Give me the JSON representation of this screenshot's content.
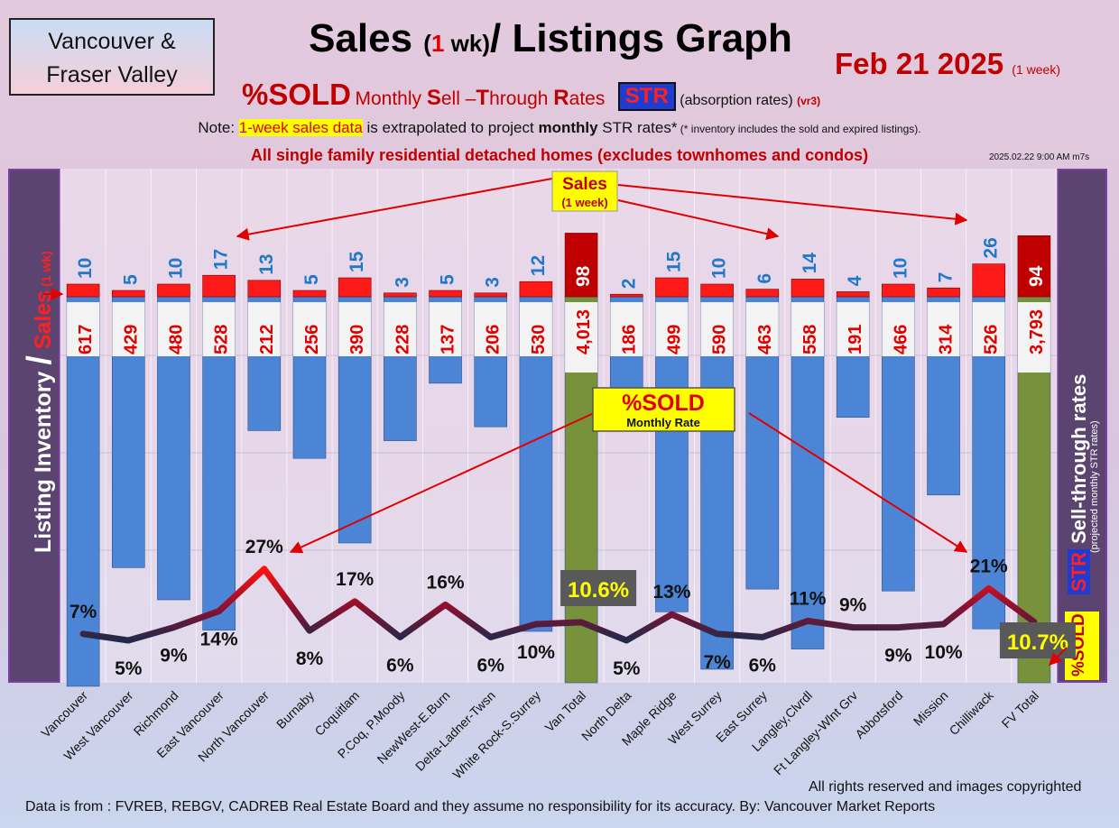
{
  "header": {
    "region_line1": "Vancouver &",
    "region_line2": "Fraser Valley",
    "title_a": "Sales ",
    "title_b": "(",
    "title_c": "1",
    "title_d": " wk)",
    "title_e": "/ Listings Graph",
    "date": "Feb 21  2025",
    "date_note": "(1 week)",
    "sold_label": "%SOLD",
    "subtitle_m": "Monthly ",
    "subtitle_s": "S",
    "subtitle_ell": "ell –",
    "subtitle_t": "T",
    "subtitle_hrough": "hrough ",
    "subtitle_r": "R",
    "subtitle_ates": "ates",
    "str_badge": "STR",
    "absorption": "(absorption rates)",
    "version": "(vr3)",
    "note_prefix": "Note: ",
    "note_highlight": "1-week sales data",
    "note_mid": " is extrapolated to project ",
    "note_bold": "monthly",
    "note_end": " STR rates*",
    "note_small": " (* inventory includes the sold and expired listings).",
    "scope": "All single family residential detached homes (excludes townhomes and condos)",
    "timestamp": "2025.02.22 9:00 AM m7s"
  },
  "chart_data": {
    "type": "bar",
    "categories": [
      "Vancouver",
      "West Vancouver",
      "Richmond",
      "East Vancouver",
      "North Vancouver",
      "Burnaby",
      "Coquitlam",
      "P.Coq, P.Moody",
      "NewWest-E.Burn",
      "Delta-Ladner-Twsn",
      "White Rock-S.Surrey",
      "Van Total",
      "North Delta",
      "Maple Ridge",
      "West Surrey",
      "East Surrey",
      "Langley,Clvrdl",
      "Ft Langley-Wlnt Grv",
      "Abbotsford",
      "Mission",
      "Chilliwack",
      "FV Total"
    ],
    "sales_1wk": [
      10,
      5,
      10,
      17,
      13,
      5,
      15,
      3,
      5,
      3,
      12,
      98,
      2,
      15,
      10,
      6,
      14,
      4,
      10,
      7,
      26,
      94
    ],
    "inventory": [
      617,
      429,
      480,
      528,
      212,
      256,
      390,
      228,
      137,
      206,
      530,
      4013,
      186,
      499,
      590,
      463,
      558,
      191,
      466,
      314,
      526,
      3793
    ],
    "inventory_labels": [
      "617",
      "429",
      "480",
      "528",
      "212",
      "256",
      "390",
      "228",
      "137",
      "206",
      "530",
      "4,013",
      "186",
      "499",
      "590",
      "463",
      "558",
      "191",
      "466",
      "314",
      "526",
      "3,793"
    ],
    "str_labels": [
      "7%",
      "5%",
      "9%",
      "14%",
      "27%",
      "8%",
      "17%",
      "6%",
      "16%",
      "6%",
      "10%",
      "10.6%",
      "5%",
      "13%",
      "7%",
      "6%",
      "11%",
      "9%",
      "9%",
      "10%",
      "21%",
      "10.7%"
    ],
    "str_values": [
      7,
      5,
      9,
      14,
      27,
      8,
      17,
      6,
      16,
      6,
      10,
      10.6,
      5,
      13,
      7,
      6,
      11,
      9,
      9,
      10,
      21,
      10.7
    ],
    "total_indices": [
      11,
      21
    ],
    "colors": {
      "sales": "#ff1a1a",
      "sales_total": "#c00000",
      "inventory": "#4d85d6",
      "inventory_total": "#77923a",
      "line_low": "#1f2a4a",
      "line_high": "#ff1010",
      "sales_label": "#1f78c8",
      "inv_label": "#e00000"
    },
    "left_axis_a": "Listing Inventory ",
    "left_axis_b": "/",
    "left_axis_c": " Sales",
    "left_axis_d": " (1 wk)",
    "right_axis_a": "STR",
    "right_axis_b": " Sell-through rates",
    "right_axis_c": "(projected monthly STR rates)",
    "right_sold": "%SOLD",
    "callout_sales": "Sales",
    "callout_sales_sub": "(1 week)",
    "callout_sold": "%SOLD",
    "callout_sold_sub": "Monthly Rate"
  },
  "footer": {
    "rights": "All rights reserved and  images copyrighted",
    "source": "Data is from : FVREB, REBGV, CADREB Real Estate Board and they assume no responsibility for its accuracy. By: Vancouver Market Reports"
  }
}
